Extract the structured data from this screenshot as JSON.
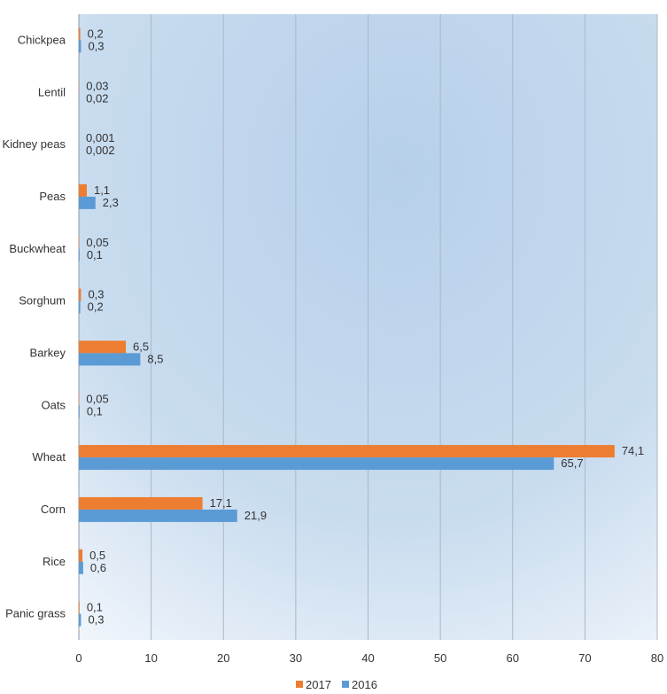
{
  "chart_data": {
    "type": "bar",
    "orientation": "horizontal",
    "categories": [
      "Chickpea",
      "Lentil",
      "Kidney peas",
      "Peas",
      "Buckwheat",
      "Sorghum",
      "Barkey",
      "Oats",
      "Wheat",
      "Corn",
      "Rice",
      "Panic grass"
    ],
    "series": [
      {
        "name": "2017",
        "color": "#ED7D31",
        "values": [
          0.2,
          0.03,
          0.001,
          1.1,
          0.05,
          0.3,
          6.5,
          0.05,
          74.1,
          17.1,
          0.5,
          0.1
        ],
        "labels": [
          "0,2",
          "0,03",
          "0,001",
          "1,1",
          "0,05",
          "0,3",
          "6,5",
          "0,05",
          "74,1",
          "17,1",
          "0,5",
          "0,1"
        ]
      },
      {
        "name": "2016",
        "color": "#5B9BD5",
        "values": [
          0.3,
          0.02,
          0.002,
          2.3,
          0.1,
          0.2,
          8.5,
          0.1,
          65.7,
          21.9,
          0.6,
          0.3
        ],
        "labels": [
          "0,3",
          "0,02",
          "0,002",
          "2,3",
          "0,1",
          "0,2",
          "8,5",
          "0,1",
          "65,7",
          "21,9",
          "0,6",
          "0,3"
        ]
      }
    ],
    "xlim": [
      0,
      80
    ],
    "xticks": [
      0,
      10,
      20,
      30,
      40,
      50,
      60,
      70,
      80
    ],
    "grid": true,
    "legend": "bottom",
    "title": "",
    "xlabel": "",
    "ylabel": ""
  }
}
